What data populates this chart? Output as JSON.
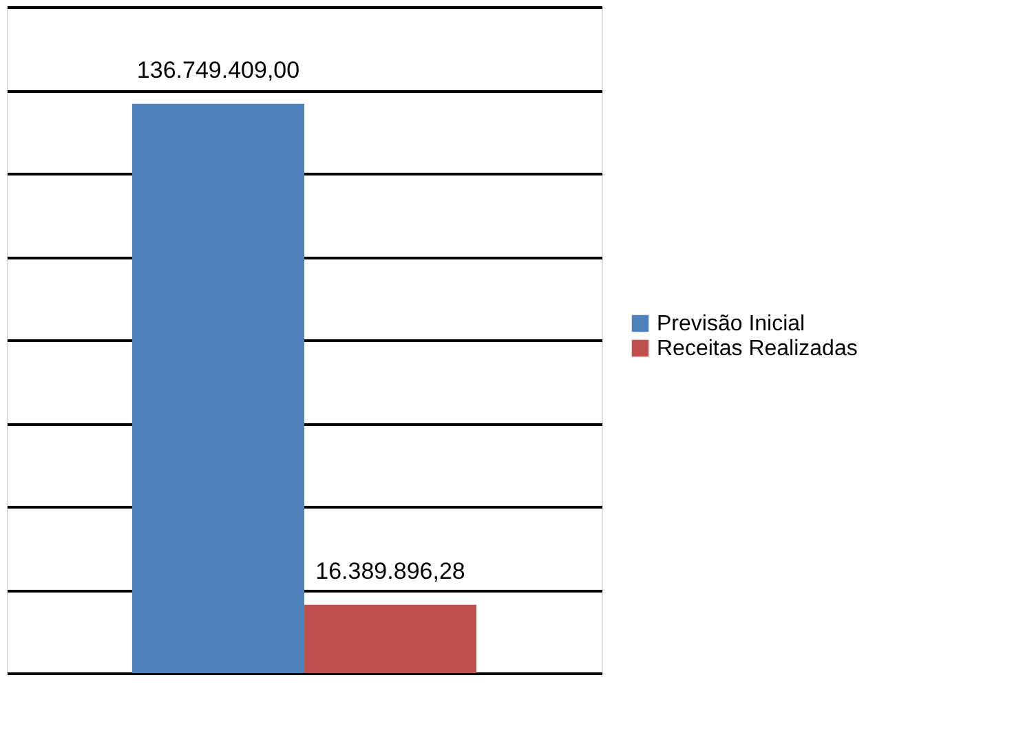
{
  "chart_data": {
    "type": "bar",
    "categories": [
      null
    ],
    "series": [
      {
        "name": "Previsão Inicial",
        "color": "#4f81bd",
        "values": [
          136749409.0
        ],
        "value_labels": [
          "136.749.409,00"
        ]
      },
      {
        "name": "Receitas Realizadas",
        "color": "#c0504d",
        "values": [
          16389896.28
        ],
        "value_labels": [
          "16.389.896,28"
        ]
      }
    ],
    "ylim": [
      0,
      160000000
    ],
    "yticks": [
      {
        "value": 0,
        "label": null
      },
      {
        "value": 20000000,
        "label": null
      },
      {
        "value": 40000000,
        "label": null
      },
      {
        "value": 60000000,
        "label": null
      },
      {
        "value": 80000000,
        "label": null
      },
      {
        "value": 100000000,
        "label": null
      },
      {
        "value": 120000000,
        "label": null
      },
      {
        "value": 140000000,
        "label": null
      },
      {
        "value": 160000000,
        "label": null
      }
    ],
    "grid": "y",
    "legend": "right",
    "tick_labels": false
  }
}
